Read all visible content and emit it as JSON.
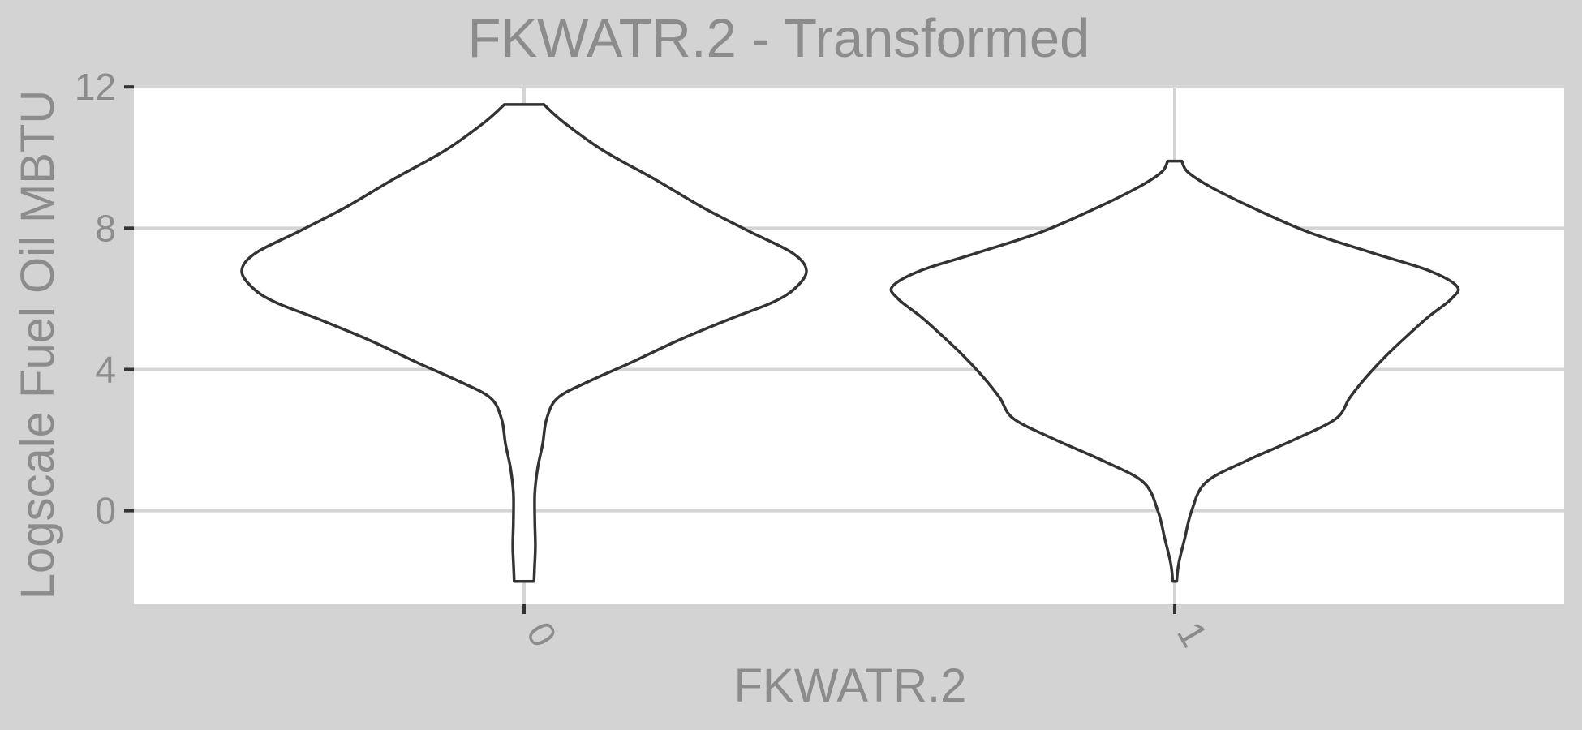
{
  "chart_data": {
    "type": "violin",
    "title": "FKWATR.2 - Transformed",
    "xlabel": "FKWATR.2",
    "ylabel": "Logscale Fuel Oil MBTU",
    "ylim": [
      -2.65,
      12.05
    ],
    "yticks": [
      0,
      4,
      8,
      12
    ],
    "categories": [
      "0",
      "1"
    ],
    "grid": true,
    "legend": "none",
    "colors": {
      "outer_background": "#d3d3d3",
      "panel_background": "#ffffff",
      "gridline": "#d4d4d4",
      "text": "#8c8c8c",
      "violin_fill": "#ffffff",
      "violin_outline": "#333333"
    },
    "violins": [
      {
        "category": "0",
        "ymin": -2.0,
        "ymax": 11.5,
        "profile": [
          {
            "y": -2.0,
            "w": 0.035
          },
          {
            "y": -1.6,
            "w": 0.037
          },
          {
            "y": -1.0,
            "w": 0.04
          },
          {
            "y": -0.3,
            "w": 0.038
          },
          {
            "y": 0.5,
            "w": 0.038
          },
          {
            "y": 1.2,
            "w": 0.048
          },
          {
            "y": 1.9,
            "w": 0.066
          },
          {
            "y": 2.6,
            "w": 0.08
          },
          {
            "y": 3.2,
            "w": 0.12
          },
          {
            "y": 3.7,
            "w": 0.24
          },
          {
            "y": 4.2,
            "w": 0.38
          },
          {
            "y": 4.8,
            "w": 0.54
          },
          {
            "y": 5.4,
            "w": 0.72
          },
          {
            "y": 5.9,
            "w": 0.88
          },
          {
            "y": 6.3,
            "w": 0.96
          },
          {
            "y": 6.8,
            "w": 1.0
          },
          {
            "y": 7.3,
            "w": 0.95
          },
          {
            "y": 7.9,
            "w": 0.8
          },
          {
            "y": 8.6,
            "w": 0.63
          },
          {
            "y": 9.4,
            "w": 0.46
          },
          {
            "y": 10.2,
            "w": 0.28
          },
          {
            "y": 11.0,
            "w": 0.14
          },
          {
            "y": 11.5,
            "w": 0.07
          }
        ]
      },
      {
        "category": "1",
        "ymin": -2.0,
        "ymax": 9.9,
        "profile": [
          {
            "y": -2.0,
            "w": 0.007
          },
          {
            "y": -1.5,
            "w": 0.014
          },
          {
            "y": -0.8,
            "w": 0.035
          },
          {
            "y": 0.0,
            "w": 0.06
          },
          {
            "y": 0.8,
            "w": 0.11
          },
          {
            "y": 1.4,
            "w": 0.25
          },
          {
            "y": 2.0,
            "w": 0.42
          },
          {
            "y": 2.6,
            "w": 0.57
          },
          {
            "y": 3.2,
            "w": 0.62
          },
          {
            "y": 3.8,
            "w": 0.68
          },
          {
            "y": 4.4,
            "w": 0.75
          },
          {
            "y": 5.0,
            "w": 0.83
          },
          {
            "y": 5.5,
            "w": 0.9
          },
          {
            "y": 6.0,
            "w": 0.98
          },
          {
            "y": 6.35,
            "w": 1.0
          },
          {
            "y": 6.8,
            "w": 0.9
          },
          {
            "y": 7.3,
            "w": 0.7
          },
          {
            "y": 7.9,
            "w": 0.47
          },
          {
            "y": 8.6,
            "w": 0.27
          },
          {
            "y": 9.2,
            "w": 0.12
          },
          {
            "y": 9.6,
            "w": 0.045
          },
          {
            "y": 9.9,
            "w": 0.025
          }
        ]
      }
    ]
  }
}
